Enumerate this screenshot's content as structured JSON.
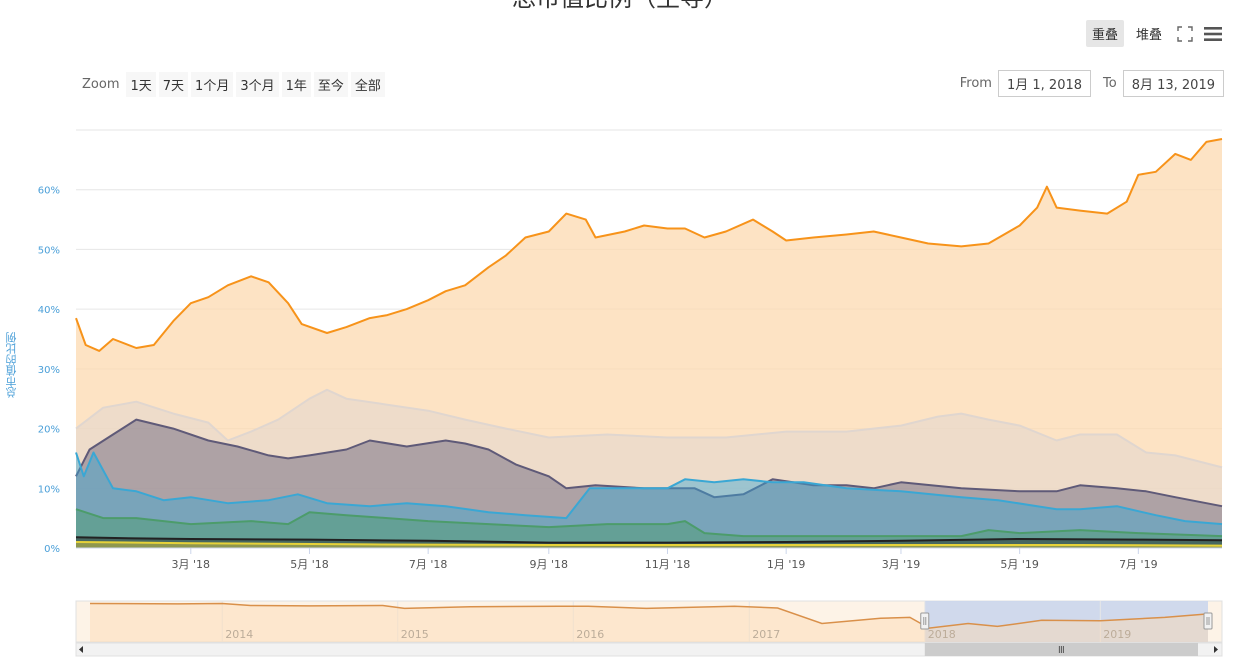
{
  "header": {
    "title": "总市值比例（主导）",
    "mode_overlap": "重叠",
    "mode_stacked": "堆叠"
  },
  "icons": {
    "fullscreen": "fullscreen-icon",
    "menu": "hamburger-menu-icon"
  },
  "zoom": {
    "label": "Zoom",
    "buttons": [
      "1天",
      "7天",
      "1个月",
      "3个月",
      "1年",
      "至今",
      "全部"
    ]
  },
  "range": {
    "from_label": "From",
    "from_value": "1月 1, 2018",
    "to_label": "To",
    "to_value": "8月 13, 2019"
  },
  "colors": {
    "btc": "#f7931a",
    "btc_fill": "#fcd9b0",
    "others": "#e0d6cf",
    "eth": "#5f5a78",
    "xrp": "#3aa7d4",
    "bch": "#4c9c6b",
    "ltc": "#222222",
    "yellow": "#e6d23a",
    "navigator_sel": "#c8d3ec"
  },
  "chart_data": {
    "type": "area",
    "ylabel": "总市值的比例",
    "ylim": [
      0,
      70
    ],
    "yticks": [
      0,
      10,
      20,
      30,
      40,
      50,
      60
    ],
    "ytick_labels": [
      "0%",
      "10%",
      "20%",
      "30%",
      "40%",
      "50%",
      "60%"
    ],
    "xlim": [
      "2018-01-01",
      "2019-08-13"
    ],
    "xticks": [
      {
        "date": "2018-03-01",
        "label": "3月 '18"
      },
      {
        "date": "2018-05-01",
        "label": "5月 '18"
      },
      {
        "date": "2018-07-01",
        "label": "7月 '18"
      },
      {
        "date": "2018-09-01",
        "label": "9月 '18"
      },
      {
        "date": "2018-11-01",
        "label": "11月 '18"
      },
      {
        "date": "2019-01-01",
        "label": "1月 '19"
      },
      {
        "date": "2019-03-01",
        "label": "3月 '19"
      },
      {
        "date": "2019-05-01",
        "label": "5月 '19"
      },
      {
        "date": "2019-07-01",
        "label": "7月 '19"
      }
    ],
    "grid": true,
    "series": [
      {
        "color_key": "btc",
        "fill_key": "btc_fill",
        "opacity": 0.75,
        "points": [
          [
            "2018-01-01",
            38.5
          ],
          [
            "2018-01-06",
            34
          ],
          [
            "2018-01-13",
            33
          ],
          [
            "2018-01-20",
            35
          ],
          [
            "2018-02-01",
            33.5
          ],
          [
            "2018-02-10",
            34
          ],
          [
            "2018-02-20",
            38
          ],
          [
            "2018-03-01",
            41
          ],
          [
            "2018-03-10",
            42
          ],
          [
            "2018-03-20",
            44
          ],
          [
            "2018-04-01",
            45.5
          ],
          [
            "2018-04-10",
            44.5
          ],
          [
            "2018-04-20",
            41
          ],
          [
            "2018-04-27",
            37.5
          ],
          [
            "2018-05-10",
            36
          ],
          [
            "2018-05-20",
            37
          ],
          [
            "2018-06-01",
            38.5
          ],
          [
            "2018-06-10",
            39
          ],
          [
            "2018-06-20",
            40
          ],
          [
            "2018-07-01",
            41.5
          ],
          [
            "2018-07-10",
            43
          ],
          [
            "2018-07-20",
            44
          ],
          [
            "2018-08-01",
            47
          ],
          [
            "2018-08-10",
            49
          ],
          [
            "2018-08-20",
            52
          ],
          [
            "2018-09-01",
            53
          ],
          [
            "2018-09-10",
            56
          ],
          [
            "2018-09-20",
            55
          ],
          [
            "2018-09-25",
            52
          ],
          [
            "2018-10-10",
            53
          ],
          [
            "2018-10-20",
            54
          ],
          [
            "2018-11-01",
            53.5
          ],
          [
            "2018-11-10",
            53.5
          ],
          [
            "2018-11-20",
            52
          ],
          [
            "2018-12-01",
            53
          ],
          [
            "2018-12-15",
            55
          ],
          [
            "2018-12-25",
            53
          ],
          [
            "2019-01-01",
            51.5
          ],
          [
            "2019-01-15",
            52
          ],
          [
            "2019-02-01",
            52.5
          ],
          [
            "2019-02-15",
            53
          ],
          [
            "2019-03-01",
            52
          ],
          [
            "2019-03-15",
            51
          ],
          [
            "2019-04-01",
            50.5
          ],
          [
            "2019-04-15",
            51
          ],
          [
            "2019-05-01",
            54
          ],
          [
            "2019-05-10",
            57
          ],
          [
            "2019-05-15",
            60.5
          ],
          [
            "2019-05-20",
            57
          ],
          [
            "2019-06-01",
            56.5
          ],
          [
            "2019-06-15",
            56
          ],
          [
            "2019-06-25",
            58
          ],
          [
            "2019-07-01",
            62.5
          ],
          [
            "2019-07-10",
            63
          ],
          [
            "2019-07-20",
            66
          ],
          [
            "2019-07-28",
            65
          ],
          [
            "2019-08-05",
            68
          ],
          [
            "2019-08-13",
            68.5
          ]
        ]
      },
      {
        "color_key": "others",
        "fill_key": "others",
        "opacity": 0.5,
        "points": [
          [
            "2018-01-01",
            20
          ],
          [
            "2018-01-15",
            23.5
          ],
          [
            "2018-02-01",
            24.5
          ],
          [
            "2018-02-20",
            22.5
          ],
          [
            "2018-03-10",
            21
          ],
          [
            "2018-03-20",
            18
          ],
          [
            "2018-04-01",
            19.5
          ],
          [
            "2018-04-15",
            21.5
          ],
          [
            "2018-05-01",
            25
          ],
          [
            "2018-05-10",
            26.5
          ],
          [
            "2018-05-20",
            25
          ],
          [
            "2018-06-10",
            24
          ],
          [
            "2018-07-01",
            23
          ],
          [
            "2018-07-20",
            21.5
          ],
          [
            "2018-08-10",
            20
          ],
          [
            "2018-09-01",
            18.5
          ],
          [
            "2018-10-01",
            19
          ],
          [
            "2018-11-01",
            18.5
          ],
          [
            "2018-12-01",
            18.5
          ],
          [
            "2019-01-01",
            19.5
          ],
          [
            "2019-02-01",
            19.5
          ],
          [
            "2019-03-01",
            20.5
          ],
          [
            "2019-03-20",
            22
          ],
          [
            "2019-04-01",
            22.5
          ],
          [
            "2019-04-15",
            21.5
          ],
          [
            "2019-05-01",
            20.5
          ],
          [
            "2019-05-20",
            18
          ],
          [
            "2019-06-01",
            19
          ],
          [
            "2019-06-20",
            19
          ],
          [
            "2019-07-05",
            16
          ],
          [
            "2019-07-20",
            15.5
          ],
          [
            "2019-08-13",
            13.5
          ]
        ]
      },
      {
        "color_key": "eth",
        "fill_key": "eth",
        "opacity": 0.45,
        "points": [
          [
            "2018-01-01",
            12
          ],
          [
            "2018-01-08",
            16.5
          ],
          [
            "2018-01-20",
            19
          ],
          [
            "2018-02-01",
            21.5
          ],
          [
            "2018-02-20",
            20
          ],
          [
            "2018-03-10",
            18
          ],
          [
            "2018-03-25",
            17
          ],
          [
            "2018-04-10",
            15.5
          ],
          [
            "2018-04-20",
            15
          ],
          [
            "2018-05-01",
            15.5
          ],
          [
            "2018-05-20",
            16.5
          ],
          [
            "2018-06-01",
            18
          ],
          [
            "2018-06-20",
            17
          ],
          [
            "2018-07-10",
            18
          ],
          [
            "2018-07-20",
            17.5
          ],
          [
            "2018-08-01",
            16.5
          ],
          [
            "2018-08-15",
            14
          ],
          [
            "2018-09-01",
            12
          ],
          [
            "2018-09-10",
            10
          ],
          [
            "2018-09-25",
            10.5
          ],
          [
            "2018-10-20",
            10
          ],
          [
            "2018-11-15",
            10
          ],
          [
            "2018-11-25",
            8.5
          ],
          [
            "2018-12-10",
            9
          ],
          [
            "2018-12-25",
            11.5
          ],
          [
            "2019-01-15",
            10.5
          ],
          [
            "2019-02-01",
            10.5
          ],
          [
            "2019-02-15",
            10
          ],
          [
            "2019-03-01",
            11
          ],
          [
            "2019-04-01",
            10
          ],
          [
            "2019-05-01",
            9.5
          ],
          [
            "2019-05-20",
            9.5
          ],
          [
            "2019-06-01",
            10.5
          ],
          [
            "2019-06-20",
            10
          ],
          [
            "2019-07-05",
            9.5
          ],
          [
            "2019-07-20",
            8.5
          ],
          [
            "2019-08-13",
            7
          ]
        ]
      },
      {
        "color_key": "xrp",
        "fill_key": "xrp",
        "opacity": 0.45,
        "points": [
          [
            "2018-01-01",
            16
          ],
          [
            "2018-01-05",
            12
          ],
          [
            "2018-01-10",
            16
          ],
          [
            "2018-01-20",
            10
          ],
          [
            "2018-02-01",
            9.5
          ],
          [
            "2018-02-15",
            8
          ],
          [
            "2018-03-01",
            8.5
          ],
          [
            "2018-03-20",
            7.5
          ],
          [
            "2018-04-10",
            8
          ],
          [
            "2018-04-25",
            9
          ],
          [
            "2018-05-10",
            7.5
          ],
          [
            "2018-06-01",
            7
          ],
          [
            "2018-06-20",
            7.5
          ],
          [
            "2018-07-10",
            7
          ],
          [
            "2018-08-01",
            6
          ],
          [
            "2018-08-20",
            5.5
          ],
          [
            "2018-09-10",
            5
          ],
          [
            "2018-09-22",
            10
          ],
          [
            "2018-10-10",
            10
          ],
          [
            "2018-11-01",
            10
          ],
          [
            "2018-11-10",
            11.5
          ],
          [
            "2018-11-25",
            11
          ],
          [
            "2018-12-10",
            11.5
          ],
          [
            "2018-12-25",
            11
          ],
          [
            "2019-01-10",
            11
          ],
          [
            "2019-02-01",
            10
          ],
          [
            "2019-03-01",
            9.5
          ],
          [
            "2019-04-01",
            8.5
          ],
          [
            "2019-04-20",
            8
          ],
          [
            "2019-05-10",
            7
          ],
          [
            "2019-05-20",
            6.5
          ],
          [
            "2019-06-01",
            6.5
          ],
          [
            "2019-06-20",
            7
          ],
          [
            "2019-07-10",
            5.5
          ],
          [
            "2019-07-25",
            4.5
          ],
          [
            "2019-08-13",
            4
          ]
        ]
      },
      {
        "color_key": "bch",
        "fill_key": "bch",
        "opacity": 0.45,
        "points": [
          [
            "2018-01-01",
            6.5
          ],
          [
            "2018-01-15",
            5
          ],
          [
            "2018-02-01",
            5
          ],
          [
            "2018-03-01",
            4
          ],
          [
            "2018-04-01",
            4.5
          ],
          [
            "2018-04-20",
            4
          ],
          [
            "2018-05-01",
            6
          ],
          [
            "2018-05-20",
            5.5
          ],
          [
            "2018-06-10",
            5
          ],
          [
            "2018-07-01",
            4.5
          ],
          [
            "2018-08-01",
            4
          ],
          [
            "2018-09-01",
            3.5
          ],
          [
            "2018-10-01",
            4
          ],
          [
            "2018-11-01",
            4
          ],
          [
            "2018-11-10",
            4.5
          ],
          [
            "2018-11-20",
            2.5
          ],
          [
            "2018-12-10",
            2
          ],
          [
            "2019-01-01",
            2
          ],
          [
            "2019-02-01",
            2
          ],
          [
            "2019-03-01",
            2
          ],
          [
            "2019-04-01",
            2
          ],
          [
            "2019-04-15",
            3
          ],
          [
            "2019-05-01",
            2.5
          ],
          [
            "2019-06-01",
            3
          ],
          [
            "2019-07-01",
            2.5
          ],
          [
            "2019-08-13",
            2
          ]
        ]
      },
      {
        "color_key": "ltc",
        "fill_key": "ltc",
        "opacity": 0.45,
        "points": [
          [
            "2018-01-01",
            1.8
          ],
          [
            "2018-02-01",
            1.6
          ],
          [
            "2018-03-01",
            1.5
          ],
          [
            "2018-05-01",
            1.4
          ],
          [
            "2018-07-01",
            1.2
          ],
          [
            "2018-09-01",
            0.9
          ],
          [
            "2018-11-01",
            0.9
          ],
          [
            "2019-01-01",
            1.0
          ],
          [
            "2019-03-01",
            1.2
          ],
          [
            "2019-05-01",
            1.5
          ],
          [
            "2019-07-01",
            1.4
          ],
          [
            "2019-08-13",
            1.3
          ]
        ]
      },
      {
        "color_key": "yellow",
        "fill_key": "yellow",
        "opacity": 0.45,
        "points": [
          [
            "2018-01-01",
            1.0
          ],
          [
            "2018-03-01",
            0.8
          ],
          [
            "2018-06-01",
            0.6
          ],
          [
            "2018-09-01",
            0.5
          ],
          [
            "2018-12-01",
            0.5
          ],
          [
            "2019-03-01",
            0.5
          ],
          [
            "2019-06-01",
            0.5
          ],
          [
            "2019-08-13",
            0.4
          ]
        ]
      }
    ],
    "navigator": {
      "year_labels": [
        "2014",
        "2015",
        "2016",
        "2017",
        "2018",
        "2019"
      ],
      "xlim": [
        "2013-04-01",
        "2019-08-13"
      ],
      "selected_range": [
        "2018-01-01",
        "2019-08-13"
      ],
      "line_points": [
        [
          "2013-04-01",
          94
        ],
        [
          "2013-10-01",
          93
        ],
        [
          "2014-01-01",
          94
        ],
        [
          "2014-03-01",
          89
        ],
        [
          "2014-07-01",
          88
        ],
        [
          "2014-12-01",
          89
        ],
        [
          "2015-01-15",
          82
        ],
        [
          "2015-06-01",
          86
        ],
        [
          "2015-12-01",
          87
        ],
        [
          "2016-02-01",
          87
        ],
        [
          "2016-06-01",
          82
        ],
        [
          "2016-12-01",
          87
        ],
        [
          "2017-03-01",
          83
        ],
        [
          "2017-06-01",
          45
        ],
        [
          "2017-10-01",
          58
        ],
        [
          "2017-12-01",
          60
        ],
        [
          "2018-01-10",
          34
        ],
        [
          "2018-04-01",
          45
        ],
        [
          "2018-06-01",
          38
        ],
        [
          "2018-09-01",
          53
        ],
        [
          "2019-01-01",
          52
        ],
        [
          "2019-05-15",
          60
        ],
        [
          "2019-08-13",
          68.5
        ]
      ]
    }
  }
}
